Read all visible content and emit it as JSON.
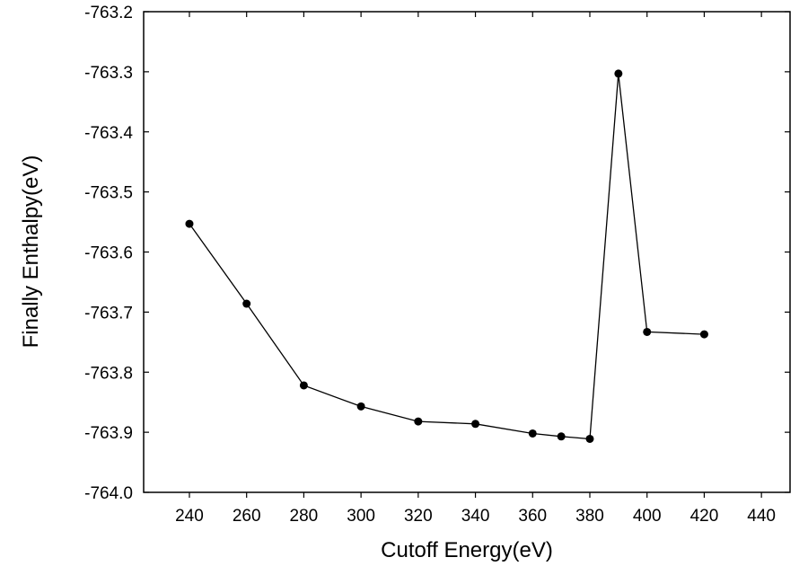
{
  "chart_data": {
    "type": "line",
    "title": "",
    "xlabel": "Cutoff Energy(eV)",
    "ylabel": "Finally Enthalpy(eV)",
    "xlim": [
      224,
      450
    ],
    "ylim": [
      -764.0,
      -763.2
    ],
    "xticks": [
      240,
      260,
      280,
      300,
      320,
      340,
      360,
      380,
      400,
      420,
      440
    ],
    "yticks": [
      -764.0,
      -763.9,
      -763.8,
      -763.7,
      -763.6,
      -763.5,
      -763.4,
      -763.3,
      -763.2
    ],
    "ytick_labels": [
      "-764.0",
      "-763.9",
      "-763.8",
      "-763.7",
      "-763.6",
      "-763.5",
      "-763.4",
      "-763.3",
      "-763.2"
    ],
    "grid": false,
    "series": [
      {
        "name": "Finally Enthalpy",
        "color": "#000000",
        "marker": "circle",
        "x": [
          240,
          260,
          280,
          300,
          320,
          340,
          360,
          370,
          380,
          390,
          400,
          420
        ],
        "y": [
          -763.553,
          -763.686,
          -763.822,
          -763.857,
          -763.882,
          -763.886,
          -763.902,
          -763.907,
          -763.911,
          -763.303,
          -763.733,
          -763.737
        ]
      }
    ]
  }
}
